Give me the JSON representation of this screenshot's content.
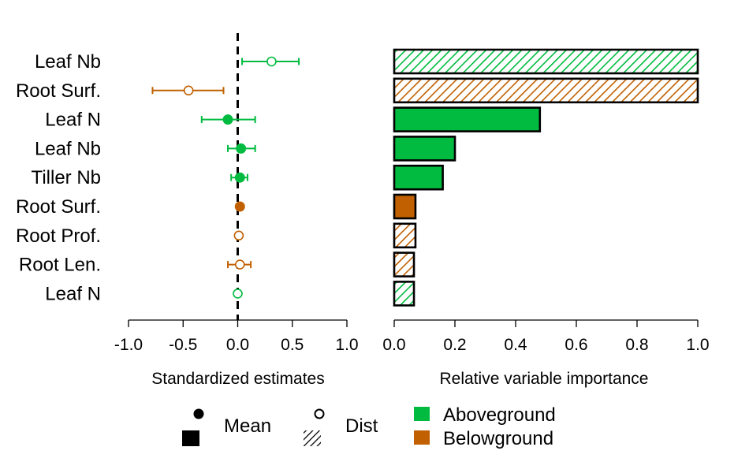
{
  "colors": {
    "aboveground": "#00bb3f",
    "belowground": "#c06000",
    "axis": "#000000"
  },
  "chart_data": [
    {
      "type": "scatter",
      "variant": "coefficient-plot",
      "xlabel": "Standardized estimates",
      "ylabel": "",
      "xlim": [
        -1.0,
        1.0
      ],
      "x_ticks": [
        "-1.0",
        "-0.5",
        "0.0",
        "0.5",
        "1.0"
      ],
      "reference_line": 0.0,
      "categories": [
        "Leaf Nb",
        "Root Surf.",
        "Leaf N",
        "Leaf Nb",
        "Tiller Nb",
        "Root Surf.",
        "Root Prof.",
        "Root Len.",
        "Leaf N"
      ],
      "groups": [
        "Aboveground",
        "Belowground",
        "Aboveground",
        "Aboveground",
        "Aboveground",
        "Belowground",
        "Belowground",
        "Belowground",
        "Aboveground"
      ],
      "measure": [
        "Dist",
        "Dist",
        "Mean",
        "Mean",
        "Mean",
        "Mean",
        "Dist",
        "Dist",
        "Dist"
      ],
      "estimate": [
        0.31,
        -0.45,
        -0.09,
        0.03,
        0.02,
        0.02,
        0.01,
        0.02,
        0.0
      ],
      "ci_low": [
        0.04,
        -0.78,
        -0.33,
        -0.09,
        -0.06,
        0.02,
        0.01,
        -0.09,
        0.0
      ],
      "ci_high": [
        0.56,
        -0.13,
        0.16,
        0.16,
        0.09,
        0.02,
        0.01,
        0.12,
        0.0
      ]
    },
    {
      "type": "bar",
      "orientation": "horizontal",
      "xlabel": "Relative variable importance",
      "ylabel": "",
      "xlim": [
        0.0,
        1.0
      ],
      "x_ticks": [
        "0.0",
        "0.2",
        "0.4",
        "0.6",
        "0.8",
        "1.0"
      ],
      "categories": [
        "Leaf Nb",
        "Root Surf.",
        "Leaf N",
        "Leaf Nb",
        "Tiller Nb",
        "Root Surf.",
        "Root Prof.",
        "Root Len.",
        "Leaf N"
      ],
      "groups": [
        "Aboveground",
        "Belowground",
        "Aboveground",
        "Aboveground",
        "Aboveground",
        "Belowground",
        "Belowground",
        "Belowground",
        "Aboveground"
      ],
      "measure": [
        "Dist",
        "Dist",
        "Mean",
        "Mean",
        "Mean",
        "Mean",
        "Dist",
        "Dist",
        "Dist"
      ],
      "values": [
        1.0,
        1.0,
        0.48,
        0.2,
        0.16,
        0.07,
        0.07,
        0.065,
        0.065
      ]
    }
  ],
  "legend": {
    "mean_label": "Mean",
    "dist_label": "Dist",
    "aboveground_label": "Aboveground",
    "belowground_label": "Belowground",
    "placement": "bottom"
  }
}
